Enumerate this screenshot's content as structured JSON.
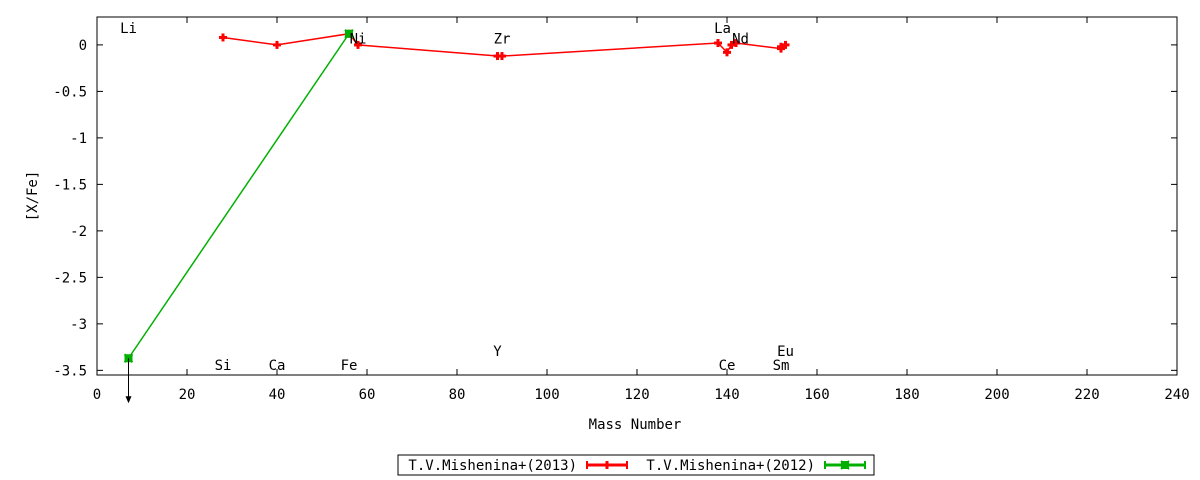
{
  "chart_data": {
    "type": "line",
    "xlabel": "Mass Number",
    "ylabel": "[X/Fe]",
    "xlim": [
      0,
      240
    ],
    "ylim": [
      -3.55,
      0.3
    ],
    "x_ticks": [
      0,
      20,
      40,
      60,
      80,
      100,
      120,
      140,
      160,
      180,
      200,
      220,
      240
    ],
    "y_ticks": [
      0,
      -0.5,
      -1,
      -1.5,
      -2,
      -2.5,
      -3,
      -3.5
    ],
    "x_tick_labels": [
      "0",
      "20",
      "40",
      "60",
      "80",
      "100",
      "120",
      "140",
      "160",
      "180",
      "200",
      "220",
      "240"
    ],
    "y_tick_labels": [
      "0",
      "-0.5",
      "-1",
      "-1.5",
      "-2",
      "-2.5",
      "-3",
      "-3.5"
    ],
    "grid": false,
    "legend_position": "bottom-center",
    "series": [
      {
        "name": "T.V.Mishenina+(2013)",
        "color": "#ff0000",
        "marker": "plus",
        "x": [
          28,
          40,
          56,
          58,
          89,
          90,
          138,
          140,
          141,
          142,
          152,
          152,
          153
        ],
        "y": [
          0.08,
          0.0,
          0.12,
          0.0,
          -0.12,
          -0.12,
          0.02,
          -0.08,
          0.0,
          0.02,
          -0.04,
          -0.02,
          0.0
        ]
      },
      {
        "name": "T.V.Mishenina+(2012)",
        "color": "#00b000",
        "marker": "cross",
        "x": [
          7,
          56
        ],
        "y": [
          -3.37,
          0.12
        ],
        "upper_limit_arrow_at_x": 7
      }
    ],
    "element_labels": [
      {
        "text": "Li",
        "x": 7,
        "y": 0.18
      },
      {
        "text": "Si",
        "x": 28,
        "y": -3.44
      },
      {
        "text": "Ca",
        "x": 40,
        "y": -3.44
      },
      {
        "text": "Fe",
        "x": 56,
        "y": -3.44
      },
      {
        "text": "Ni",
        "x": 58,
        "y": 0.07
      },
      {
        "text": "Zr",
        "x": 90,
        "y": 0.07
      },
      {
        "text": "Y",
        "x": 89,
        "y": -3.29
      },
      {
        "text": "La",
        "x": 139,
        "y": 0.18
      },
      {
        "text": "Nd",
        "x": 143,
        "y": 0.07
      },
      {
        "text": "Ce",
        "x": 140,
        "y": -3.44
      },
      {
        "text": "Eu",
        "x": 153,
        "y": -3.29
      },
      {
        "text": "Sm",
        "x": 152,
        "y": -3.44
      }
    ]
  }
}
